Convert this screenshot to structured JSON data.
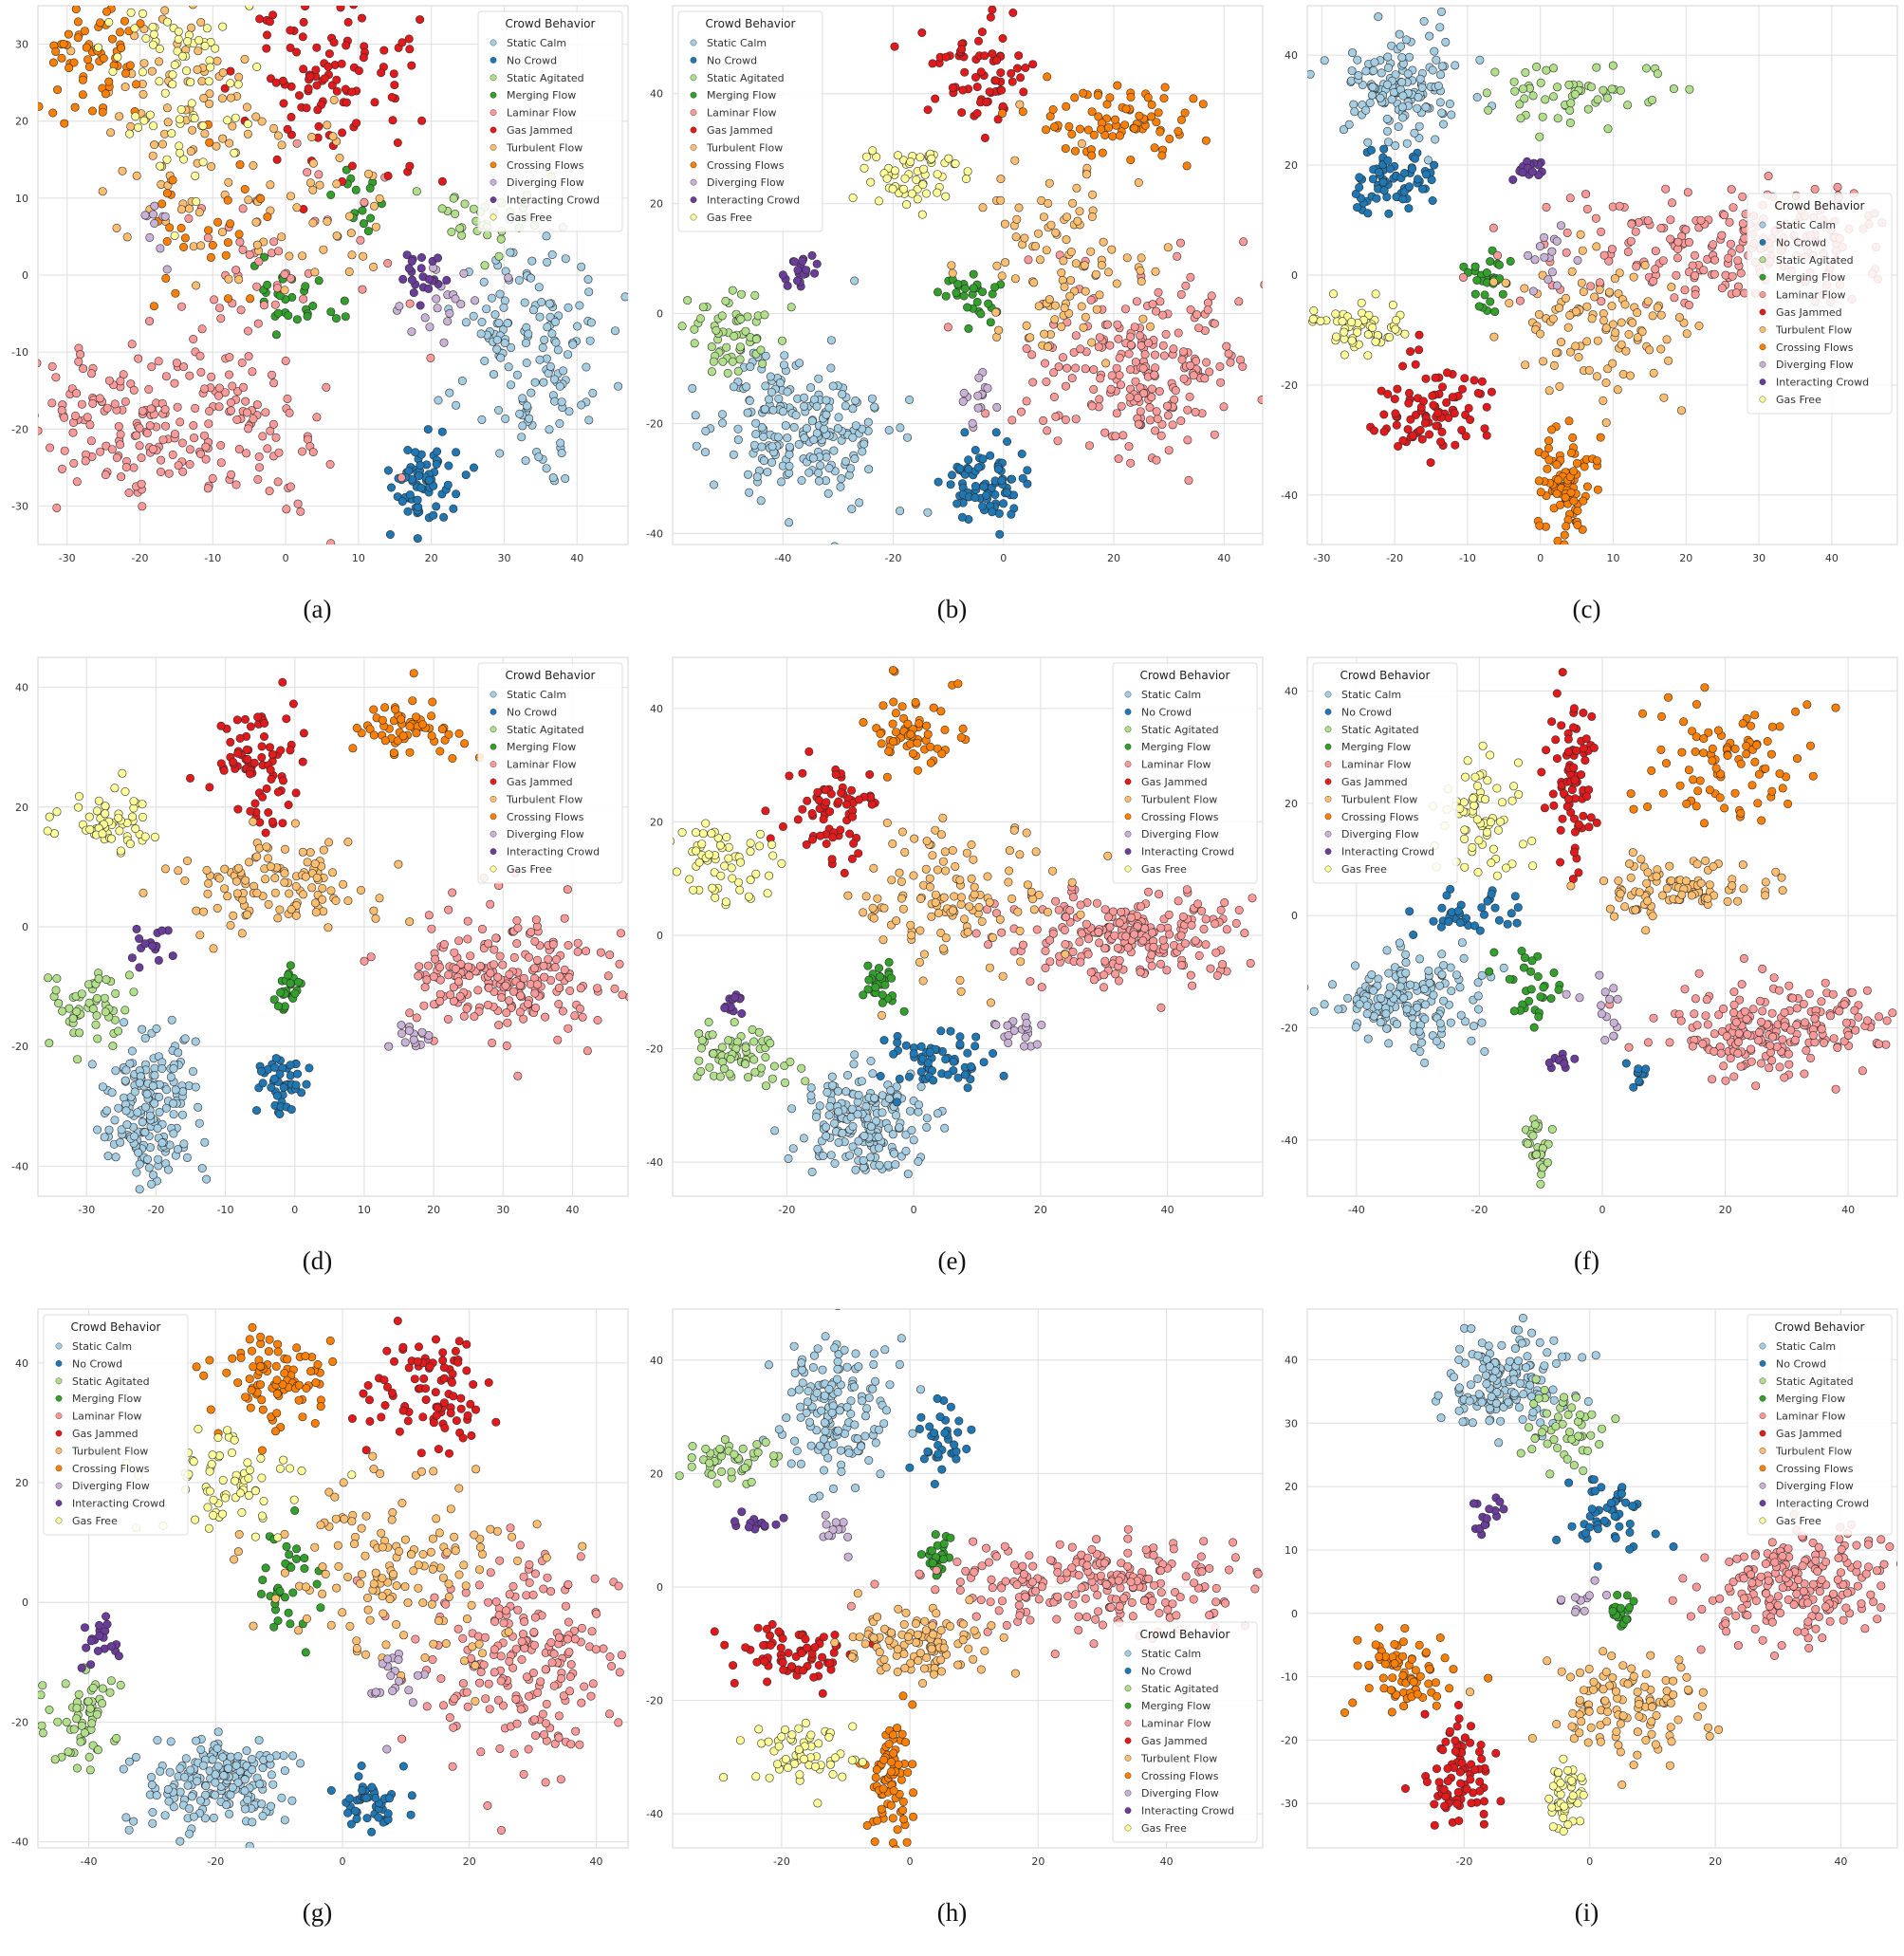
{
  "legend": {
    "title": "Crowd Behavior",
    "items": [
      {
        "name": "Static Calm",
        "color": "#a6cee3"
      },
      {
        "name": "No Crowd",
        "color": "#1f78b4"
      },
      {
        "name": "Static Agitated",
        "color": "#b2df8a"
      },
      {
        "name": "Merging Flow",
        "color": "#33a02c"
      },
      {
        "name": "Laminar Flow",
        "color": "#fb9a99"
      },
      {
        "name": "Gas Jammed",
        "color": "#e31a1c"
      },
      {
        "name": "Turbulent Flow",
        "color": "#fdbf6f"
      },
      {
        "name": "Crossing Flows",
        "color": "#ff7f00"
      },
      {
        "name": "Diverging Flow",
        "color": "#cab2d6"
      },
      {
        "name": "Interacting Crowd",
        "color": "#6a3d9a"
      },
      {
        "name": "Gas Free",
        "color": "#ffff99"
      }
    ]
  },
  "chart_data": [
    {
      "type": "scatter",
      "caption": "(a)",
      "legend_loc": "top-right",
      "xlim": [
        -34,
        47
      ],
      "ylim": [
        -35,
        35
      ],
      "xticks": [
        -30,
        -20,
        -10,
        0,
        10,
        20,
        30,
        40
      ],
      "yticks": [
        -30,
        -20,
        -10,
        0,
        10,
        20,
        30
      ],
      "clusters": [
        {
          "cls": 0,
          "cx": 34,
          "cy": -10,
          "sx": 5,
          "sy": 7,
          "n": 160
        },
        {
          "cls": 1,
          "cx": 19,
          "cy": -27,
          "sx": 2.5,
          "sy": 3,
          "n": 70
        },
        {
          "cls": 2,
          "cx": 28,
          "cy": 7,
          "sx": 3.5,
          "sy": 2,
          "n": 35
        },
        {
          "cls": 3,
          "cx": 1,
          "cy": -3,
          "sx": 3,
          "sy": 3,
          "n": 30
        },
        {
          "cls": 3,
          "cx": 10,
          "cy": 11,
          "sx": 3,
          "sy": 3,
          "n": 15
        },
        {
          "cls": 4,
          "cx": -16,
          "cy": -20,
          "sx": 11,
          "sy": 5,
          "n": 240
        },
        {
          "cls": 4,
          "cx": -3,
          "cy": 0,
          "sx": 9,
          "sy": 7,
          "n": 50
        },
        {
          "cls": 5,
          "cx": 7,
          "cy": 25,
          "sx": 6,
          "sy": 6,
          "n": 110
        },
        {
          "cls": 6,
          "cx": -15,
          "cy": 20,
          "sx": 6,
          "sy": 8,
          "n": 90
        },
        {
          "cls": 6,
          "cx": 2,
          "cy": 9,
          "sx": 7,
          "sy": 6,
          "n": 50
        },
        {
          "cls": 7,
          "cx": -26,
          "cy": 28,
          "sx": 4,
          "sy": 4,
          "n": 65
        },
        {
          "cls": 7,
          "cx": -10,
          "cy": 5,
          "sx": 6,
          "sy": 6,
          "n": 30
        },
        {
          "cls": 8,
          "cx": 22,
          "cy": -3,
          "sx": 3,
          "sy": 3,
          "n": 20
        },
        {
          "cls": 8,
          "cx": -18,
          "cy": 6,
          "sx": 2,
          "sy": 2,
          "n": 10
        },
        {
          "cls": 9,
          "cx": 19,
          "cy": 0,
          "sx": 2,
          "sy": 2,
          "n": 22
        },
        {
          "cls": 10,
          "cx": -15,
          "cy": 25,
          "sx": 5,
          "sy": 6,
          "n": 80
        }
      ]
    },
    {
      "type": "scatter",
      "caption": "(b)",
      "legend_loc": "top-left",
      "xlim": [
        -60,
        47
      ],
      "ylim": [
        -42,
        56
      ],
      "xticks": [
        -40,
        -20,
        0,
        20,
        40
      ],
      "yticks": [
        -40,
        -20,
        0,
        20,
        40
      ],
      "clusters": [
        {
          "cls": 0,
          "cx": -37,
          "cy": -20,
          "sx": 8,
          "sy": 7,
          "n": 220
        },
        {
          "cls": 1,
          "cx": -4,
          "cy": -31,
          "sx": 3.5,
          "sy": 3.5,
          "n": 80
        },
        {
          "cls": 2,
          "cx": -49,
          "cy": -4,
          "sx": 4,
          "sy": 4,
          "n": 60
        },
        {
          "cls": 3,
          "cx": -6,
          "cy": 3,
          "sx": 3,
          "sy": 2.5,
          "n": 30
        },
        {
          "cls": 4,
          "cx": 25,
          "cy": -10,
          "sx": 10,
          "sy": 8,
          "n": 240
        },
        {
          "cls": 5,
          "cx": -4,
          "cy": 44,
          "sx": 5,
          "sy": 5,
          "n": 70
        },
        {
          "cls": 6,
          "cx": 10,
          "cy": 10,
          "sx": 9,
          "sy": 9,
          "n": 110
        },
        {
          "cls": 7,
          "cx": 20,
          "cy": 35,
          "sx": 7,
          "sy": 4,
          "n": 80
        },
        {
          "cls": 8,
          "cx": -6,
          "cy": -16,
          "sx": 2,
          "sy": 3,
          "n": 15
        },
        {
          "cls": 9,
          "cx": -37,
          "cy": 7,
          "sx": 1.5,
          "sy": 2.5,
          "n": 20
        },
        {
          "cls": 10,
          "cx": -16,
          "cy": 25,
          "sx": 5,
          "sy": 3,
          "n": 60
        }
      ]
    },
    {
      "type": "scatter",
      "caption": "(c)",
      "legend_loc": "center-right",
      "xlim": [
        -32,
        49
      ],
      "ylim": [
        -49,
        49
      ],
      "xticks": [
        -30,
        -20,
        -10,
        0,
        10,
        20,
        30,
        40
      ],
      "yticks": [
        -40,
        -20,
        0,
        20,
        40
      ],
      "clusters": [
        {
          "cls": 0,
          "cx": -19,
          "cy": 34,
          "sx": 4,
          "sy": 5,
          "n": 150
        },
        {
          "cls": 1,
          "cx": -21,
          "cy": 17,
          "sx": 3,
          "sy": 3,
          "n": 70
        },
        {
          "cls": 2,
          "cx": 5,
          "cy": 33,
          "sx": 6,
          "sy": 3,
          "n": 60
        },
        {
          "cls": 3,
          "cx": -7,
          "cy": -1,
          "sx": 1.5,
          "sy": 3,
          "n": 30
        },
        {
          "cls": 4,
          "cx": 28,
          "cy": 5,
          "sx": 12,
          "sy": 5,
          "n": 230
        },
        {
          "cls": 5,
          "cx": -15,
          "cy": -25,
          "sx": 4,
          "sy": 4,
          "n": 90
        },
        {
          "cls": 6,
          "cx": 8,
          "cy": -10,
          "sx": 6,
          "sy": 6,
          "n": 110
        },
        {
          "cls": 7,
          "cx": 4,
          "cy": -38,
          "sx": 1.8,
          "sy": 5,
          "n": 90
        },
        {
          "cls": 8,
          "cx": 1,
          "cy": 4,
          "sx": 1.5,
          "sy": 3,
          "n": 15
        },
        {
          "cls": 9,
          "cx": -1,
          "cy": 19,
          "sx": 1.5,
          "sy": 1,
          "n": 15
        },
        {
          "cls": 10,
          "cx": -25,
          "cy": -10,
          "sx": 4,
          "sy": 2,
          "n": 60
        }
      ]
    },
    {
      "type": "scatter",
      "caption": "(d)",
      "legend_loc": "top-right",
      "xlim": [
        -37,
        48
      ],
      "ylim": [
        -45,
        45
      ],
      "xticks": [
        -30,
        -20,
        -10,
        0,
        10,
        20,
        30,
        40
      ],
      "yticks": [
        -40,
        -20,
        0,
        20,
        40
      ],
      "clusters": [
        {
          "cls": 0,
          "cx": -21,
          "cy": -31,
          "sx": 3.5,
          "sy": 6,
          "n": 180
        },
        {
          "cls": 1,
          "cx": -2,
          "cy": -26,
          "sx": 2,
          "sy": 2.5,
          "n": 45
        },
        {
          "cls": 2,
          "cx": -30,
          "cy": -13,
          "sx": 3,
          "sy": 3,
          "n": 55
        },
        {
          "cls": 3,
          "cx": -1,
          "cy": -11,
          "sx": 1,
          "sy": 2,
          "n": 25
        },
        {
          "cls": 4,
          "cx": 30,
          "cy": -8,
          "sx": 8,
          "sy": 5,
          "n": 230
        },
        {
          "cls": 5,
          "cx": -6,
          "cy": 27,
          "sx": 3,
          "sy": 5,
          "n": 80
        },
        {
          "cls": 6,
          "cx": -2,
          "cy": 7,
          "sx": 7,
          "sy": 4,
          "n": 120
        },
        {
          "cls": 7,
          "cx": 16,
          "cy": 33,
          "sx": 4,
          "sy": 3,
          "n": 60
        },
        {
          "cls": 8,
          "cx": 17,
          "cy": -18,
          "sx": 1.5,
          "sy": 1.5,
          "n": 15
        },
        {
          "cls": 9,
          "cx": -20,
          "cy": -4,
          "sx": 1.5,
          "sy": 1.5,
          "n": 15
        },
        {
          "cls": 10,
          "cx": -27,
          "cy": 18,
          "sx": 4,
          "sy": 2.5,
          "n": 60
        }
      ]
    },
    {
      "type": "scatter",
      "caption": "(e)",
      "legend_loc": "top-right",
      "xlim": [
        -38,
        55
      ],
      "ylim": [
        -46,
        49
      ],
      "xticks": [
        -20,
        0,
        20,
        40
      ],
      "yticks": [
        -40,
        -20,
        0,
        20,
        40
      ],
      "clusters": [
        {
          "cls": 0,
          "cx": -8,
          "cy": -33,
          "sx": 5,
          "sy": 4.5,
          "n": 190
        },
        {
          "cls": 1,
          "cx": 3,
          "cy": -22,
          "sx": 4,
          "sy": 3,
          "n": 60
        },
        {
          "cls": 2,
          "cx": -27,
          "cy": -22,
          "sx": 4,
          "sy": 3,
          "n": 70
        },
        {
          "cls": 3,
          "cx": -6,
          "cy": -8,
          "sx": 2,
          "sy": 2,
          "n": 30
        },
        {
          "cls": 4,
          "cx": 33,
          "cy": 0,
          "sx": 10,
          "sy": 4,
          "n": 230
        },
        {
          "cls": 5,
          "cx": -13,
          "cy": 22,
          "sx": 4,
          "sy": 4,
          "n": 70
        },
        {
          "cls": 6,
          "cx": 6,
          "cy": 5,
          "sx": 8,
          "sy": 7,
          "n": 130
        },
        {
          "cls": 7,
          "cx": 0,
          "cy": 37,
          "sx": 3,
          "sy": 4,
          "n": 60
        },
        {
          "cls": 8,
          "cx": 17,
          "cy": -17,
          "sx": 2.5,
          "sy": 1.5,
          "n": 20
        },
        {
          "cls": 9,
          "cx": -28,
          "cy": -12,
          "sx": 1.5,
          "sy": 1,
          "n": 12
        },
        {
          "cls": 10,
          "cx": -30,
          "cy": 12,
          "sx": 3.5,
          "sy": 3,
          "n": 60
        }
      ]
    },
    {
      "type": "scatter",
      "caption": "(f)",
      "legend_loc": "top-left",
      "xlim": [
        -48,
        48
      ],
      "ylim": [
        -50,
        46
      ],
      "xticks": [
        -40,
        -20,
        0,
        20,
        40
      ],
      "yticks": [
        -40,
        -20,
        0,
        20,
        40
      ],
      "clusters": [
        {
          "cls": 0,
          "cx": -32,
          "cy": -15,
          "sx": 6,
          "sy": 4,
          "n": 170
        },
        {
          "cls": 1,
          "cx": -22,
          "cy": 0,
          "sx": 4,
          "sy": 2,
          "n": 35
        },
        {
          "cls": 1,
          "cx": 6,
          "cy": -28,
          "sx": 1,
          "sy": 1.5,
          "n": 10
        },
        {
          "cls": 2,
          "cx": -10,
          "cy": -40,
          "sx": 1.2,
          "sy": 3,
          "n": 35
        },
        {
          "cls": 3,
          "cx": -12,
          "cy": -13,
          "sx": 3,
          "sy": 4,
          "n": 30
        },
        {
          "cls": 4,
          "cx": 28,
          "cy": -20,
          "sx": 9,
          "sy": 4,
          "n": 220
        },
        {
          "cls": 5,
          "cx": -5,
          "cy": 25,
          "sx": 2,
          "sy": 8,
          "n": 80
        },
        {
          "cls": 6,
          "cx": 10,
          "cy": 5,
          "sx": 8,
          "sy": 2.5,
          "n": 100
        },
        {
          "cls": 7,
          "cx": 20,
          "cy": 27,
          "sx": 7,
          "sy": 5,
          "n": 90
        },
        {
          "cls": 8,
          "cx": 0,
          "cy": -16,
          "sx": 2,
          "sy": 3,
          "n": 15
        },
        {
          "cls": 9,
          "cx": -7,
          "cy": -26,
          "sx": 1,
          "sy": 1,
          "n": 10
        },
        {
          "cls": 10,
          "cx": -20,
          "cy": 17,
          "sx": 4,
          "sy": 5,
          "n": 70
        }
      ]
    },
    {
      "type": "scatter",
      "caption": "(g)",
      "legend_loc": "top-left",
      "xlim": [
        -48,
        45
      ],
      "ylim": [
        -41,
        49
      ],
      "xticks": [
        -40,
        -20,
        0,
        20,
        40
      ],
      "yticks": [
        -40,
        -20,
        0,
        20,
        40
      ],
      "clusters": [
        {
          "cls": 0,
          "cx": -19,
          "cy": -30,
          "sx": 6,
          "sy": 4,
          "n": 190
        },
        {
          "cls": 1,
          "cx": 4,
          "cy": -33,
          "sx": 3,
          "sy": 2.5,
          "n": 50
        },
        {
          "cls": 2,
          "cx": -41,
          "cy": -20,
          "sx": 3,
          "sy": 4,
          "n": 60
        },
        {
          "cls": 3,
          "cx": -9,
          "cy": 3,
          "sx": 2.5,
          "sy": 5,
          "n": 35
        },
        {
          "cls": 4,
          "cx": 29,
          "cy": -9,
          "sx": 8,
          "sy": 9,
          "n": 220
        },
        {
          "cls": 5,
          "cx": 13,
          "cy": 35,
          "sx": 5,
          "sy": 5,
          "n": 90
        },
        {
          "cls": 6,
          "cx": 10,
          "cy": 5,
          "sx": 10,
          "sy": 8,
          "n": 150
        },
        {
          "cls": 7,
          "cx": -11,
          "cy": 37,
          "sx": 5,
          "sy": 4,
          "n": 90
        },
        {
          "cls": 8,
          "cx": 8,
          "cy": -13,
          "sx": 2,
          "sy": 3,
          "n": 20
        },
        {
          "cls": 9,
          "cx": -38,
          "cy": -7,
          "sx": 1.5,
          "sy": 2,
          "n": 20
        },
        {
          "cls": 10,
          "cx": -17,
          "cy": 20,
          "sx": 5,
          "sy": 5,
          "n": 70
        }
      ]
    },
    {
      "type": "scatter",
      "caption": "(h)",
      "legend_loc": "bottom-right",
      "xlim": [
        -37,
        55
      ],
      "ylim": [
        -46,
        49
      ],
      "xticks": [
        -20,
        0,
        20,
        40
      ],
      "yticks": [
        -40,
        -20,
        0,
        20,
        40
      ],
      "clusters": [
        {
          "cls": 0,
          "cx": -11,
          "cy": 32,
          "sx": 4,
          "sy": 6,
          "n": 150
        },
        {
          "cls": 1,
          "cx": 5,
          "cy": 25,
          "sx": 1.5,
          "sy": 4,
          "n": 35
        },
        {
          "cls": 2,
          "cx": -28,
          "cy": 22,
          "sx": 4,
          "sy": 2,
          "n": 50
        },
        {
          "cls": 3,
          "cx": 4,
          "cy": 6,
          "sx": 1,
          "sy": 2.5,
          "n": 25
        },
        {
          "cls": 4,
          "cx": 30,
          "cy": 0,
          "sx": 12,
          "sy": 4,
          "n": 240
        },
        {
          "cls": 5,
          "cx": -17,
          "cy": -12,
          "sx": 5,
          "sy": 2.5,
          "n": 70
        },
        {
          "cls": 6,
          "cx": 2,
          "cy": -10,
          "sx": 6,
          "sy": 3,
          "n": 110
        },
        {
          "cls": 7,
          "cx": -3,
          "cy": -33,
          "sx": 2,
          "sy": 6,
          "n": 80
        },
        {
          "cls": 8,
          "cx": -12,
          "cy": 10,
          "sx": 1,
          "sy": 2,
          "n": 12
        },
        {
          "cls": 9,
          "cx": -24,
          "cy": 11,
          "sx": 2,
          "sy": 1,
          "n": 15
        },
        {
          "cls": 10,
          "cx": -17,
          "cy": -29,
          "sx": 4,
          "sy": 3,
          "n": 60
        }
      ]
    },
    {
      "type": "scatter",
      "caption": "(i)",
      "legend_loc": "top-right",
      "xlim": [
        -45,
        49
      ],
      "ylim": [
        -37,
        48
      ],
      "xticks": [
        -20,
        0,
        20,
        40
      ],
      "yticks": [
        -30,
        -20,
        -10,
        0,
        10,
        20,
        30,
        40
      ],
      "clusters": [
        {
          "cls": 0,
          "cx": -14,
          "cy": 37,
          "sx": 5,
          "sy": 4,
          "n": 150
        },
        {
          "cls": 1,
          "cx": 3,
          "cy": 15,
          "sx": 3,
          "sy": 3,
          "n": 50
        },
        {
          "cls": 2,
          "cx": -4,
          "cy": 29,
          "sx": 3,
          "sy": 3,
          "n": 50
        },
        {
          "cls": 3,
          "cx": 5,
          "cy": 0,
          "sx": 1,
          "sy": 1.5,
          "n": 20
        },
        {
          "cls": 4,
          "cx": 34,
          "cy": 4,
          "sx": 8,
          "sy": 4,
          "n": 220
        },
        {
          "cls": 5,
          "cx": -21,
          "cy": -26,
          "sx": 3,
          "sy": 4,
          "n": 80
        },
        {
          "cls": 6,
          "cx": 6,
          "cy": -15,
          "sx": 7,
          "sy": 4,
          "n": 120
        },
        {
          "cls": 7,
          "cx": -30,
          "cy": -9,
          "sx": 4,
          "sy": 3,
          "n": 80
        },
        {
          "cls": 8,
          "cx": -2,
          "cy": 2,
          "sx": 2,
          "sy": 1,
          "n": 12
        },
        {
          "cls": 9,
          "cx": -17,
          "cy": 15,
          "sx": 1.5,
          "sy": 1.5,
          "n": 15
        },
        {
          "cls": 10,
          "cx": -4,
          "cy": -29,
          "sx": 1.5,
          "sy": 3,
          "n": 50
        }
      ]
    }
  ]
}
